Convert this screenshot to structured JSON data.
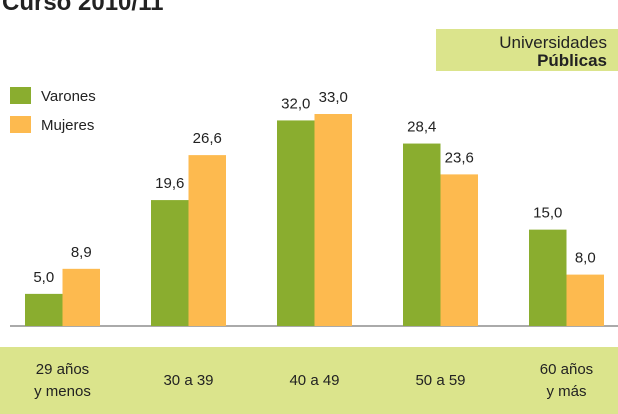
{
  "chart_data": {
    "type": "bar",
    "title": "Curso 2010/11",
    "annotations": [
      "Universidades",
      "Públicas"
    ],
    "categories": [
      "29 años\ny menos",
      "30 a 39",
      "40 a 49",
      "50 a 59",
      "60 años\ny más"
    ],
    "series": [
      {
        "name": "Varones",
        "color": "#8aad2f",
        "values": [
          5.0,
          19.6,
          32.0,
          28.4,
          15.0
        ],
        "value_labels": [
          "5,0",
          "19,6",
          "32,0",
          "28,4",
          "15,0"
        ]
      },
      {
        "name": "Mujeres",
        "color": "#fdba4f",
        "values": [
          8.9,
          26.6,
          33.0,
          23.6,
          8.0
        ],
        "value_labels": [
          "8,9",
          "26,6",
          "33,0",
          "23,6",
          "8,0"
        ]
      }
    ],
    "ylim": [
      0,
      33
    ]
  }
}
